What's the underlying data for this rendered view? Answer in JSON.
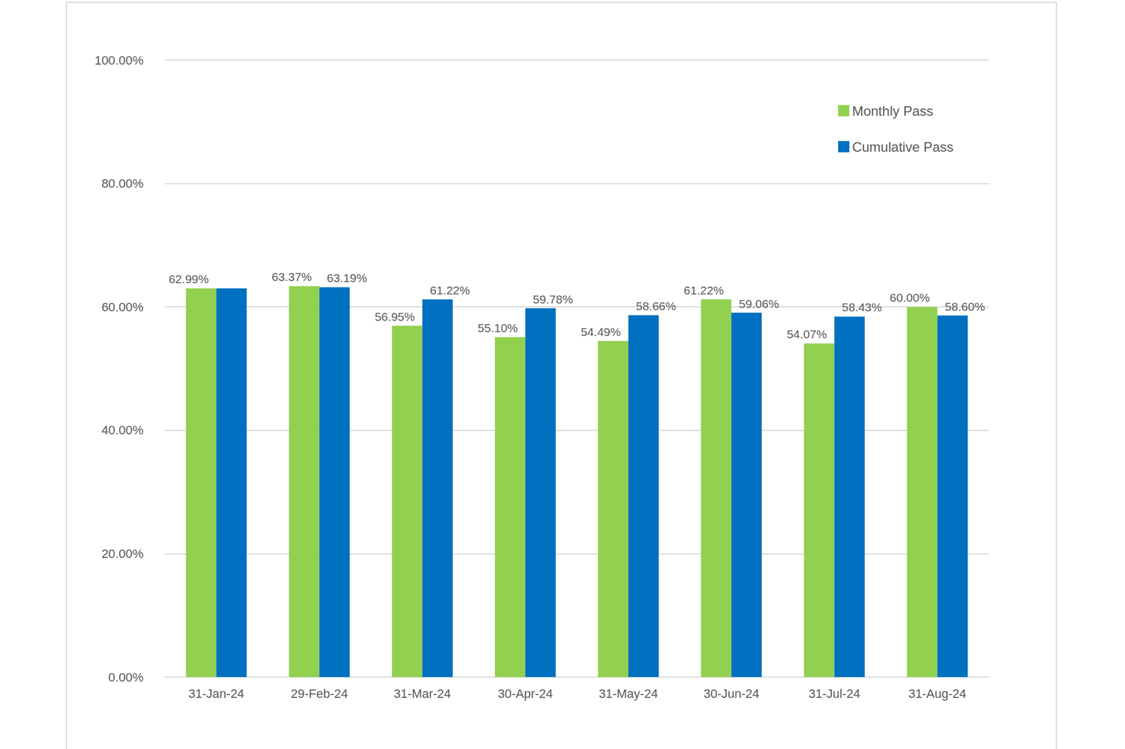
{
  "chart_data": {
    "type": "bar",
    "categories": [
      "31-Jan-24",
      "29-Feb-24",
      "31-Mar-24",
      "30-Apr-24",
      "31-May-24",
      "30-Jun-24",
      "31-Jul-24",
      "31-Aug-24"
    ],
    "series": [
      {
        "name": "Monthly Pass",
        "color": "#92D050",
        "values": [
          62.99,
          63.37,
          56.95,
          55.1,
          54.49,
          61.22,
          54.07,
          60.0
        ],
        "value_labels": [
          "62.99%",
          "63.37%",
          "56.95%",
          "55.10%",
          "54.49%",
          "61.22%",
          "54.07%",
          "60.00%"
        ]
      },
      {
        "name": "Cumulative Pass",
        "color": "#0070C0",
        "values": [
          62.99,
          63.19,
          61.22,
          59.78,
          58.66,
          59.06,
          58.43,
          58.6
        ],
        "value_labels": [
          null,
          "63.19%",
          "61.22%",
          "59.78%",
          "58.66%",
          "59.06%",
          "58.43%",
          "58.60%"
        ]
      }
    ],
    "ylim": [
      0,
      100
    ],
    "yticks": [
      {
        "value": 0,
        "label": "0.00%"
      },
      {
        "value": 20,
        "label": "20.00%"
      },
      {
        "value": 40,
        "label": "40.00%"
      },
      {
        "value": 60,
        "label": "60.00%"
      },
      {
        "value": 80,
        "label": "80.00%"
      },
      {
        "value": 100,
        "label": "100.00%"
      }
    ],
    "grid": true,
    "legend": "upper right",
    "data_labels": true
  }
}
